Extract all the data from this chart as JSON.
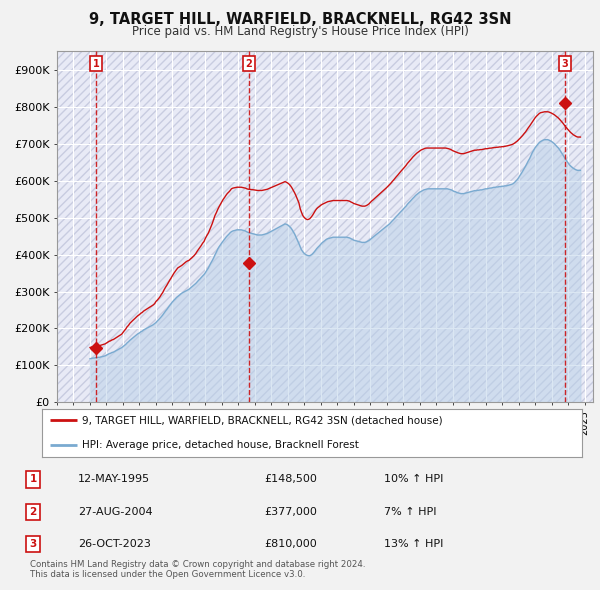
{
  "title": "9, TARGET HILL, WARFIELD, BRACKNELL, RG42 3SN",
  "subtitle": "Price paid vs. HM Land Registry's House Price Index (HPI)",
  "ylim": [
    0,
    950000
  ],
  "yticks": [
    0,
    100000,
    200000,
    300000,
    400000,
    500000,
    600000,
    700000,
    800000,
    900000
  ],
  "ytick_labels": [
    "£0",
    "£100K",
    "£200K",
    "£300K",
    "£400K",
    "£500K",
    "£600K",
    "£700K",
    "£800K",
    "£900K"
  ],
  "xlim_start": 1993.0,
  "xlim_end": 2025.5,
  "background_color": "#f2f2f2",
  "plot_bg_color": "#e8eaf6",
  "hatch_color": "#c8cce0",
  "grid_color": "#ffffff",
  "sale_color": "#cc1111",
  "hpi_color": "#7aaad0",
  "hpi_fill_color": "#b8d0e8",
  "vline_color": "#cc1111",
  "transactions": [
    {
      "label": "1",
      "date_num": 1995.36,
      "price": 148500,
      "text": "12-MAY-1995",
      "amount": "£148,500",
      "hpi_pct": "10% ↑ HPI"
    },
    {
      "label": "2",
      "date_num": 2004.65,
      "price": 377000,
      "text": "27-AUG-2004",
      "amount": "£377,000",
      "hpi_pct": "7% ↑ HPI"
    },
    {
      "label": "3",
      "date_num": 2023.82,
      "price": 810000,
      "text": "26-OCT-2023",
      "amount": "£810,000",
      "hpi_pct": "13% ↑ HPI"
    }
  ],
  "legend_line1": "9, TARGET HILL, WARFIELD, BRACKNELL, RG42 3SN (detached house)",
  "legend_line2": "HPI: Average price, detached house, Bracknell Forest",
  "footnote": "Contains HM Land Registry data © Crown copyright and database right 2024.\nThis data is licensed under the Open Government Licence v3.0.",
  "hpi_data_x": [
    1995.0,
    1995.08,
    1995.17,
    1995.25,
    1995.33,
    1995.42,
    1995.5,
    1995.58,
    1995.67,
    1995.75,
    1995.83,
    1995.92,
    1996.0,
    1996.08,
    1996.17,
    1996.25,
    1996.33,
    1996.42,
    1996.5,
    1996.58,
    1996.67,
    1996.75,
    1996.83,
    1996.92,
    1997.0,
    1997.08,
    1997.17,
    1997.25,
    1997.33,
    1997.42,
    1997.5,
    1997.58,
    1997.67,
    1997.75,
    1997.83,
    1997.92,
    1998.0,
    1998.08,
    1998.17,
    1998.25,
    1998.33,
    1998.42,
    1998.5,
    1998.58,
    1998.67,
    1998.75,
    1998.83,
    1998.92,
    1999.0,
    1999.08,
    1999.17,
    1999.25,
    1999.33,
    1999.42,
    1999.5,
    1999.58,
    1999.67,
    1999.75,
    1999.83,
    1999.92,
    2000.0,
    2000.08,
    2000.17,
    2000.25,
    2000.33,
    2000.42,
    2000.5,
    2000.58,
    2000.67,
    2000.75,
    2000.83,
    2000.92,
    2001.0,
    2001.08,
    2001.17,
    2001.25,
    2001.33,
    2001.42,
    2001.5,
    2001.58,
    2001.67,
    2001.75,
    2001.83,
    2001.92,
    2002.0,
    2002.08,
    2002.17,
    2002.25,
    2002.33,
    2002.42,
    2002.5,
    2002.58,
    2002.67,
    2002.75,
    2002.83,
    2002.92,
    2003.0,
    2003.08,
    2003.17,
    2003.25,
    2003.33,
    2003.42,
    2003.5,
    2003.58,
    2003.67,
    2003.75,
    2003.83,
    2003.92,
    2004.0,
    2004.08,
    2004.17,
    2004.25,
    2004.33,
    2004.42,
    2004.5,
    2004.58,
    2004.67,
    2004.75,
    2004.83,
    2004.92,
    2005.0,
    2005.08,
    2005.17,
    2005.25,
    2005.33,
    2005.42,
    2005.5,
    2005.58,
    2005.67,
    2005.75,
    2005.83,
    2005.92,
    2006.0,
    2006.08,
    2006.17,
    2006.25,
    2006.33,
    2006.42,
    2006.5,
    2006.58,
    2006.67,
    2006.75,
    2006.83,
    2006.92,
    2007.0,
    2007.08,
    2007.17,
    2007.25,
    2007.33,
    2007.42,
    2007.5,
    2007.58,
    2007.67,
    2007.75,
    2007.83,
    2007.92,
    2008.0,
    2008.08,
    2008.17,
    2008.25,
    2008.33,
    2008.42,
    2008.5,
    2008.58,
    2008.67,
    2008.75,
    2008.83,
    2008.92,
    2009.0,
    2009.08,
    2009.17,
    2009.25,
    2009.33,
    2009.42,
    2009.5,
    2009.58,
    2009.67,
    2009.75,
    2009.83,
    2009.92,
    2010.0,
    2010.08,
    2010.17,
    2010.25,
    2010.33,
    2010.42,
    2010.5,
    2010.58,
    2010.67,
    2010.75,
    2010.83,
    2010.92,
    2011.0,
    2011.08,
    2011.17,
    2011.25,
    2011.33,
    2011.42,
    2011.5,
    2011.58,
    2011.67,
    2011.75,
    2011.83,
    2011.92,
    2012.0,
    2012.08,
    2012.17,
    2012.25,
    2012.33,
    2012.42,
    2012.5,
    2012.58,
    2012.67,
    2012.75,
    2012.83,
    2012.92,
    2013.0,
    2013.08,
    2013.17,
    2013.25,
    2013.33,
    2013.42,
    2013.5,
    2013.58,
    2013.67,
    2013.75,
    2013.83,
    2013.92,
    2014.0,
    2014.08,
    2014.17,
    2014.25,
    2014.33,
    2014.42,
    2014.5,
    2014.58,
    2014.67,
    2014.75,
    2014.83,
    2014.92,
    2015.0,
    2015.08,
    2015.17,
    2015.25,
    2015.33,
    2015.42,
    2015.5,
    2015.58,
    2015.67,
    2015.75,
    2015.83,
    2015.92,
    2016.0,
    2016.08,
    2016.17,
    2016.25,
    2016.33,
    2016.42,
    2016.5,
    2016.58,
    2016.67,
    2016.75,
    2016.83,
    2016.92,
    2017.0,
    2017.08,
    2017.17,
    2017.25,
    2017.33,
    2017.42,
    2017.5,
    2017.58,
    2017.67,
    2017.75,
    2017.83,
    2017.92,
    2018.0,
    2018.08,
    2018.17,
    2018.25,
    2018.33,
    2018.42,
    2018.5,
    2018.58,
    2018.67,
    2018.75,
    2018.83,
    2018.92,
    2019.0,
    2019.08,
    2019.17,
    2019.25,
    2019.33,
    2019.42,
    2019.5,
    2019.58,
    2019.67,
    2019.75,
    2019.83,
    2019.92,
    2020.0,
    2020.08,
    2020.17,
    2020.25,
    2020.33,
    2020.42,
    2020.5,
    2020.58,
    2020.67,
    2020.75,
    2020.83,
    2020.92,
    2021.0,
    2021.08,
    2021.17,
    2021.25,
    2021.33,
    2021.42,
    2021.5,
    2021.58,
    2021.67,
    2021.75,
    2021.83,
    2021.92,
    2022.0,
    2022.08,
    2022.17,
    2022.25,
    2022.33,
    2022.42,
    2022.5,
    2022.58,
    2022.67,
    2022.75,
    2022.83,
    2022.92,
    2023.0,
    2023.08,
    2023.17,
    2023.25,
    2023.33,
    2023.42,
    2023.5,
    2023.58,
    2023.67,
    2023.75,
    2023.83,
    2023.92,
    2024.0,
    2024.08,
    2024.17,
    2024.25,
    2024.33,
    2024.42,
    2024.5,
    2024.58,
    2024.67,
    2024.75
  ],
  "hpi_data_y": [
    118000,
    119000,
    120000,
    120000,
    121000,
    121000,
    122000,
    122000,
    123000,
    124000,
    125000,
    126000,
    128000,
    130000,
    132000,
    133000,
    135000,
    136000,
    138000,
    140000,
    142000,
    144000,
    146000,
    148000,
    151000,
    154000,
    157000,
    161000,
    164000,
    168000,
    171000,
    174000,
    177000,
    180000,
    183000,
    186000,
    188000,
    191000,
    193000,
    196000,
    198000,
    200000,
    202000,
    204000,
    206000,
    208000,
    210000,
    213000,
    216000,
    220000,
    224000,
    228000,
    232000,
    237000,
    242000,
    247000,
    252000,
    257000,
    262000,
    267000,
    272000,
    276000,
    280000,
    284000,
    287000,
    290000,
    293000,
    296000,
    298000,
    300000,
    302000,
    304000,
    306000,
    309000,
    312000,
    315000,
    318000,
    322000,
    326000,
    330000,
    334000,
    338000,
    342000,
    346000,
    351000,
    357000,
    363000,
    370000,
    377000,
    384000,
    391000,
    399000,
    407000,
    415000,
    421000,
    427000,
    432000,
    437000,
    442000,
    447000,
    451000,
    455000,
    459000,
    462000,
    464000,
    465000,
    466000,
    467000,
    467000,
    467000,
    467000,
    466000,
    465000,
    464000,
    462000,
    460000,
    459000,
    458000,
    457000,
    456000,
    455000,
    454000,
    453000,
    453000,
    453000,
    453000,
    454000,
    455000,
    456000,
    457000,
    459000,
    461000,
    463000,
    465000,
    467000,
    469000,
    471000,
    473000,
    475000,
    477000,
    479000,
    481000,
    483000,
    482000,
    480000,
    477000,
    473000,
    468000,
    462000,
    455000,
    447000,
    439000,
    430000,
    421000,
    413000,
    407000,
    403000,
    400000,
    398000,
    397000,
    397000,
    399000,
    402000,
    406000,
    411000,
    416000,
    420000,
    424000,
    428000,
    432000,
    435000,
    438000,
    441000,
    443000,
    444000,
    445000,
    446000,
    447000,
    447000,
    447000,
    447000,
    447000,
    447000,
    447000,
    447000,
    447000,
    447000,
    447000,
    446000,
    445000,
    443000,
    441000,
    439000,
    438000,
    437000,
    436000,
    435000,
    434000,
    433000,
    433000,
    433000,
    434000,
    436000,
    438000,
    441000,
    444000,
    447000,
    450000,
    453000,
    456000,
    459000,
    462000,
    465000,
    468000,
    471000,
    474000,
    477000,
    480000,
    483000,
    487000,
    491000,
    495000,
    499000,
    503000,
    507000,
    511000,
    515000,
    519000,
    523000,
    527000,
    531000,
    536000,
    540000,
    544000,
    548000,
    552000,
    556000,
    560000,
    563000,
    566000,
    569000,
    571000,
    573000,
    575000,
    576000,
    577000,
    578000,
    578000,
    578000,
    578000,
    578000,
    578000,
    578000,
    578000,
    578000,
    578000,
    578000,
    578000,
    578000,
    578000,
    578000,
    577000,
    576000,
    575000,
    573000,
    571000,
    570000,
    568000,
    567000,
    566000,
    565000,
    565000,
    565000,
    566000,
    567000,
    568000,
    569000,
    570000,
    571000,
    572000,
    573000,
    573000,
    574000,
    574000,
    575000,
    575000,
    576000,
    577000,
    578000,
    578000,
    579000,
    580000,
    580000,
    581000,
    582000,
    582000,
    583000,
    583000,
    584000,
    584000,
    585000,
    585000,
    586000,
    586000,
    587000,
    588000,
    589000,
    590000,
    592000,
    595000,
    599000,
    603000,
    608000,
    614000,
    620000,
    626000,
    632000,
    639000,
    646000,
    653000,
    660000,
    668000,
    676000,
    683000,
    689000,
    694000,
    699000,
    703000,
    706000,
    708000,
    710000,
    711000,
    711000,
    711000,
    710000,
    708000,
    706000,
    703000,
    700000,
    696000,
    692000,
    688000,
    683000,
    677000,
    671000,
    665000,
    659000,
    653000,
    648000,
    643000,
    639000,
    636000,
    633000,
    631000,
    629000,
    628000,
    628000,
    628000
  ],
  "sale_hpi_x": [
    1995.0,
    1995.08,
    1995.17,
    1995.25,
    1995.33,
    1995.42,
    1995.5,
    1995.58,
    1995.67,
    1995.75,
    1995.83,
    1995.92,
    1996.0,
    1996.08,
    1996.17,
    1996.25,
    1996.33,
    1996.42,
    1996.5,
    1996.58,
    1996.67,
    1996.75,
    1996.83,
    1996.92,
    1997.0,
    1997.08,
    1997.17,
    1997.25,
    1997.33,
    1997.42,
    1997.5,
    1997.58,
    1997.67,
    1997.75,
    1997.83,
    1997.92,
    1998.0,
    1998.08,
    1998.17,
    1998.25,
    1998.33,
    1998.42,
    1998.5,
    1998.58,
    1998.67,
    1998.75,
    1998.83,
    1998.92,
    1999.0,
    1999.08,
    1999.17,
    1999.25,
    1999.33,
    1999.42,
    1999.5,
    1999.58,
    1999.67,
    1999.75,
    1999.83,
    1999.92,
    2000.0,
    2000.08,
    2000.17,
    2000.25,
    2000.33,
    2000.42,
    2000.5,
    2000.58,
    2000.67,
    2000.75,
    2000.83,
    2000.92,
    2001.0,
    2001.08,
    2001.17,
    2001.25,
    2001.33,
    2001.42,
    2001.5,
    2001.58,
    2001.67,
    2001.75,
    2001.83,
    2001.92,
    2002.0,
    2002.08,
    2002.17,
    2002.25,
    2002.33,
    2002.42,
    2002.5,
    2002.58,
    2002.67,
    2002.75,
    2002.83,
    2002.92,
    2003.0,
    2003.08,
    2003.17,
    2003.25,
    2003.33,
    2003.42,
    2003.5,
    2003.58,
    2003.67,
    2003.75,
    2003.83,
    2003.92,
    2004.0,
    2004.08,
    2004.17,
    2004.25,
    2004.33,
    2004.42,
    2004.5,
    2004.58,
    2004.67,
    2004.75,
    2004.83,
    2004.92,
    2005.0,
    2005.08,
    2005.17,
    2005.25,
    2005.33,
    2005.42,
    2005.5,
    2005.58,
    2005.67,
    2005.75,
    2005.83,
    2005.92,
    2006.0,
    2006.08,
    2006.17,
    2006.25,
    2006.33,
    2006.42,
    2006.5,
    2006.58,
    2006.67,
    2006.75,
    2006.83,
    2006.92,
    2007.0,
    2007.08,
    2007.17,
    2007.25,
    2007.33,
    2007.42,
    2007.5,
    2007.58,
    2007.67,
    2007.75,
    2007.83,
    2007.92,
    2008.0,
    2008.08,
    2008.17,
    2008.25,
    2008.33,
    2008.42,
    2008.5,
    2008.58,
    2008.67,
    2008.75,
    2008.83,
    2008.92,
    2009.0,
    2009.08,
    2009.17,
    2009.25,
    2009.33,
    2009.42,
    2009.5,
    2009.58,
    2009.67,
    2009.75,
    2009.83,
    2009.92,
    2010.0,
    2010.08,
    2010.17,
    2010.25,
    2010.33,
    2010.42,
    2010.5,
    2010.58,
    2010.67,
    2010.75,
    2010.83,
    2010.92,
    2011.0,
    2011.08,
    2011.17,
    2011.25,
    2011.33,
    2011.42,
    2011.5,
    2011.58,
    2011.67,
    2011.75,
    2011.83,
    2011.92,
    2012.0,
    2012.08,
    2012.17,
    2012.25,
    2012.33,
    2012.42,
    2012.5,
    2012.58,
    2012.67,
    2012.75,
    2012.83,
    2012.92,
    2013.0,
    2013.08,
    2013.17,
    2013.25,
    2013.33,
    2013.42,
    2013.5,
    2013.58,
    2013.67,
    2013.75,
    2013.83,
    2013.92,
    2014.0,
    2014.08,
    2014.17,
    2014.25,
    2014.33,
    2014.42,
    2014.5,
    2014.58,
    2014.67,
    2014.75,
    2014.83,
    2014.92,
    2015.0,
    2015.08,
    2015.17,
    2015.25,
    2015.33,
    2015.42,
    2015.5,
    2015.58,
    2015.67,
    2015.75,
    2015.83,
    2015.92,
    2016.0,
    2016.08,
    2016.17,
    2016.25,
    2016.33,
    2016.42,
    2016.5,
    2016.58,
    2016.67,
    2016.75,
    2016.83,
    2016.92,
    2017.0,
    2017.08,
    2017.17,
    2017.25,
    2017.33,
    2017.42,
    2017.5,
    2017.58,
    2017.67,
    2017.75,
    2017.83,
    2017.92,
    2018.0,
    2018.08,
    2018.17,
    2018.25,
    2018.33,
    2018.42,
    2018.5,
    2018.58,
    2018.67,
    2018.75,
    2018.83,
    2018.92,
    2019.0,
    2019.08,
    2019.17,
    2019.25,
    2019.33,
    2019.42,
    2019.5,
    2019.58,
    2019.67,
    2019.75,
    2019.83,
    2019.92,
    2020.0,
    2020.08,
    2020.17,
    2020.25,
    2020.33,
    2020.42,
    2020.5,
    2020.58,
    2020.67,
    2020.75,
    2020.83,
    2020.92,
    2021.0,
    2021.08,
    2021.17,
    2021.25,
    2021.33,
    2021.42,
    2021.5,
    2021.58,
    2021.67,
    2021.75,
    2021.83,
    2021.92,
    2022.0,
    2022.08,
    2022.17,
    2022.25,
    2022.33,
    2022.42,
    2022.5,
    2022.58,
    2022.67,
    2022.75,
    2022.83,
    2022.92,
    2023.0,
    2023.08,
    2023.17,
    2023.25,
    2023.33,
    2023.42,
    2023.5,
    2023.58,
    2023.67,
    2023.75,
    2023.83,
    2023.92,
    2024.0,
    2024.08,
    2024.17,
    2024.25,
    2024.33,
    2024.42,
    2024.5,
    2024.58,
    2024.67,
    2024.75
  ],
  "sale_hpi_y": [
    148500,
    149683,
    150865,
    151238,
    152420,
    152420,
    153603,
    153603,
    154785,
    155968,
    157150,
    158333,
    160698,
    163063,
    165428,
    166611,
    168976,
    170158,
    172523,
    174888,
    177253,
    179618,
    181983,
    184348,
    189078,
    193808,
    198538,
    204457,
    207997,
    213916,
    217456,
    220996,
    224536,
    228076,
    231616,
    235156,
    237521,
    241061,
    243426,
    246961,
    249326,
    251691,
    254056,
    256421,
    258786,
    261151,
    263516,
    267056,
    272975,
    276515,
    281244,
    285974,
    291893,
    297812,
    304920,
    311244,
    317568,
    323892,
    330216,
    336540,
    342864,
    348783,
    354702,
    359432,
    363972,
    366337,
    368702,
    371067,
    374607,
    378147,
    380512,
    382877,
    384053,
    387593,
    390943,
    394383,
    397823,
    402823,
    408743,
    413743,
    419663,
    424663,
    430583,
    435583,
    443933,
    450663,
    457393,
    465533,
    474483,
    484233,
    494783,
    505433,
    513793,
    522153,
    529403,
    536653,
    543003,
    549353,
    554903,
    560453,
    565203,
    569153,
    573103,
    577953,
    579853,
    580653,
    581453,
    582253,
    582253,
    582253,
    582253,
    581453,
    580653,
    579853,
    578253,
    577053,
    576653,
    576253,
    575853,
    575253,
    574653,
    574053,
    573453,
    573453,
    573453,
    573453,
    574253,
    575053,
    575853,
    576653,
    578253,
    579853,
    581453,
    583053,
    584653,
    586253,
    587853,
    589453,
    591053,
    592653,
    594253,
    595853,
    597453,
    595653,
    593453,
    590453,
    585853,
    580453,
    573853,
    566653,
    558653,
    549853,
    540253,
    524653,
    514253,
    504853,
    500253,
    497053,
    494653,
    495253,
    497053,
    501453,
    506253,
    512453,
    519053,
    524053,
    527453,
    530253,
    533453,
    535853,
    537653,
    539453,
    541253,
    543053,
    543853,
    544653,
    545453,
    546253,
    546253,
    546253,
    546253,
    546253,
    546253,
    546253,
    546253,
    546253,
    546253,
    546253,
    545453,
    544253,
    542253,
    540453,
    538253,
    537053,
    535853,
    534653,
    533453,
    532253,
    531053,
    531053,
    531053,
    532253,
    534253,
    537053,
    540653,
    544653,
    547853,
    551253,
    554453,
    557853,
    561253,
    564453,
    567853,
    571453,
    574653,
    577853,
    581453,
    585053,
    589053,
    593053,
    597453,
    601853,
    606253,
    610653,
    615053,
    619453,
    623853,
    628253,
    632453,
    636453,
    641253,
    646453,
    650453,
    654853,
    659253,
    663653,
    667853,
    671253,
    674653,
    677653,
    680253,
    682853,
    684653,
    686253,
    687653,
    688253,
    688253,
    688253,
    688253,
    688253,
    688253,
    688253,
    688253,
    688253,
    688253,
    688253,
    688253,
    688253,
    688253,
    688253,
    687453,
    686453,
    685253,
    683453,
    681253,
    679653,
    678053,
    676653,
    675253,
    674053,
    673053,
    673053,
    673053,
    674253,
    675453,
    676653,
    677853,
    679053,
    680253,
    681453,
    682453,
    682453,
    683253,
    683253,
    684053,
    684053,
    684853,
    685653,
    686453,
    686453,
    687253,
    688053,
    688053,
    688853,
    689653,
    689653,
    690453,
    690453,
    691253,
    691253,
    692053,
    692053,
    692853,
    693653,
    694453,
    695453,
    696253,
    697453,
    699253,
    701453,
    704253,
    707253,
    710653,
    714453,
    718653,
    722653,
    727253,
    731853,
    737253,
    742653,
    748053,
    753453,
    759253,
    765053,
    770053,
    774253,
    778253,
    781653,
    783853,
    784853,
    785853,
    786453,
    786453,
    786453,
    785853,
    784253,
    782653,
    780653,
    778253,
    775453,
    772453,
    769253,
    765453,
    761253,
    756653,
    751853,
    747053,
    742253,
    738253,
    733853,
    729853,
    726853,
    723853,
    721453,
    719453,
    718053,
    718053,
    718053
  ]
}
